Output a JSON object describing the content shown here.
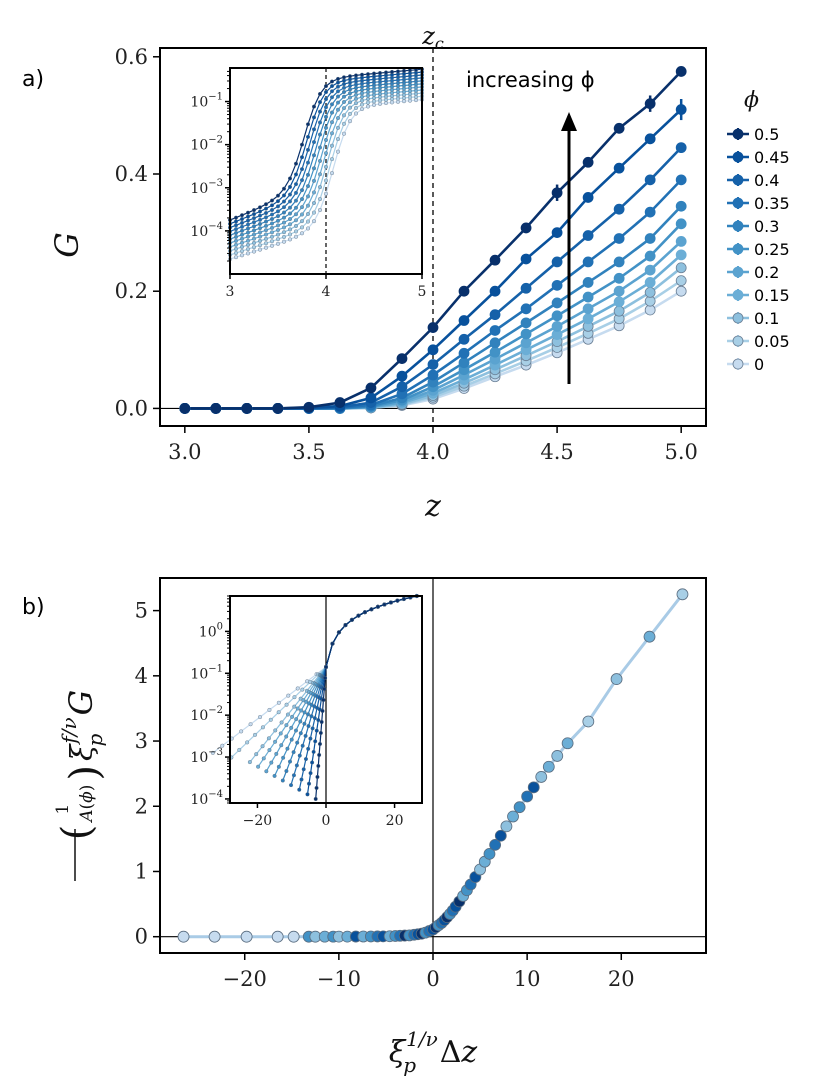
{
  "chart_data": [
    {
      "panel": "a)",
      "type": "line",
      "xlabel": "z",
      "ylabel": "G",
      "xlim": [
        2.9,
        5.1
      ],
      "ylim": [
        -0.03,
        0.615
      ],
      "xticks": [
        "3.0",
        "3.5",
        "4.0",
        "4.5",
        "5.0"
      ],
      "yticks": [
        "0.0",
        "0.2",
        "0.4",
        "0.6"
      ],
      "vline_x": 4.0,
      "vline_label": "z_c",
      "hline_y": 0,
      "annotation": "increasing ϕ",
      "legend": {
        "title": "ϕ",
        "position": "right",
        "entries": [
          "0.5",
          "0.45",
          "0.4",
          "0.35",
          "0.3",
          "0.25",
          "0.2",
          "0.15",
          "0.1",
          "0.05",
          "0"
        ]
      },
      "colors": [
        "#08306b",
        "#08519c",
        "#1561a9",
        "#2171b5",
        "#3182bd",
        "#4292c6",
        "#5ba3d0",
        "#6baed6",
        "#8dc0de",
        "#a8cfe6",
        "#c6dbef"
      ],
      "x": [
        3.0,
        3.125,
        3.25,
        3.375,
        3.5,
        3.625,
        3.75,
        3.875,
        4.0,
        4.125,
        4.25,
        4.375,
        4.5,
        4.625,
        4.75,
        4.875,
        5.0
      ],
      "series": [
        {
          "name": "0.5",
          "values": [
            0,
            0,
            0,
            0,
            0.002,
            0.01,
            0.035,
            0.085,
            0.138,
            0.2,
            0.253,
            0.308,
            0.368,
            0.42,
            0.478,
            0.52,
            0.575
          ]
        },
        {
          "name": "0.45",
          "values": [
            0,
            0,
            0,
            0,
            0.001,
            0.004,
            0.018,
            0.055,
            0.1,
            0.15,
            0.2,
            0.255,
            0.3,
            0.36,
            0.41,
            0.46,
            0.51
          ]
        },
        {
          "name": "0.4",
          "values": [
            0,
            0,
            0,
            0,
            0,
            0.002,
            0.01,
            0.037,
            0.075,
            0.118,
            0.16,
            0.205,
            0.25,
            0.295,
            0.34,
            0.39,
            0.445
          ]
        },
        {
          "name": "0.35",
          "values": [
            0,
            0,
            0,
            0,
            0,
            0.001,
            0.006,
            0.025,
            0.057,
            0.094,
            0.133,
            0.17,
            0.21,
            0.25,
            0.29,
            0.335,
            0.39
          ]
        },
        {
          "name": "0.3",
          "values": [
            0,
            0,
            0,
            0,
            0,
            0,
            0.004,
            0.018,
            0.045,
            0.078,
            0.112,
            0.146,
            0.18,
            0.215,
            0.25,
            0.29,
            0.345
          ]
        },
        {
          "name": "0.25",
          "values": [
            0,
            0,
            0,
            0,
            0,
            0,
            0.003,
            0.014,
            0.037,
            0.066,
            0.096,
            0.127,
            0.158,
            0.19,
            0.222,
            0.26,
            0.315
          ]
        },
        {
          "name": "0.2",
          "values": [
            0,
            0,
            0,
            0,
            0,
            0,
            0.002,
            0.011,
            0.031,
            0.057,
            0.084,
            0.112,
            0.14,
            0.17,
            0.2,
            0.236,
            0.285
          ]
        },
        {
          "name": "0.15",
          "values": [
            0,
            0,
            0,
            0,
            0,
            0,
            0.002,
            0.009,
            0.026,
            0.049,
            0.074,
            0.1,
            0.126,
            0.153,
            0.182,
            0.215,
            0.262
          ]
        },
        {
          "name": "0.1",
          "values": [
            0,
            0,
            0,
            0,
            0,
            0,
            0.001,
            0.007,
            0.022,
            0.043,
            0.066,
            0.09,
            0.114,
            0.14,
            0.166,
            0.198,
            0.24
          ]
        },
        {
          "name": "0.05",
          "values": [
            0,
            0,
            0,
            0,
            0,
            0,
            0.001,
            0.006,
            0.019,
            0.038,
            0.059,
            0.081,
            0.104,
            0.128,
            0.153,
            0.183,
            0.218
          ]
        },
        {
          "name": "0",
          "values": [
            0,
            0,
            0,
            0,
            0,
            0,
            0.001,
            0.005,
            0.016,
            0.034,
            0.054,
            0.074,
            0.095,
            0.118,
            0.141,
            0.168,
            0.2
          ]
        }
      ],
      "inset": {
        "type": "line",
        "yscale": "log",
        "xlim": [
          3.0,
          5.0
        ],
        "ylim": [
          1e-05,
          0.6
        ],
        "xticks": [
          "3",
          "4",
          "5"
        ],
        "yticks": [
          "10^{-4}",
          "10^{-3}",
          "10^{-2}",
          "10^{-1}"
        ],
        "vline_x": 4.0
      }
    },
    {
      "panel": "b)",
      "type": "scatter",
      "xlabel": "ξ_p^{1/ν} Δz",
      "ylabel": "(1/A(ϕ)) ξ_p^{f/ν} G",
      "xlim": [
        -29,
        29
      ],
      "ylim": [
        -0.25,
        5.5
      ],
      "xticks": [
        "−20",
        "−10",
        "0",
        "10",
        "20"
      ],
      "yticks": [
        "0",
        "1",
        "2",
        "3",
        "4",
        "5"
      ],
      "vline_x": 0,
      "hline_y": 0,
      "collapse_curve": [
        [
          -26.5,
          0
        ],
        [
          -16,
          0
        ],
        [
          -9,
          0.001
        ],
        [
          -5,
          0.005
        ],
        [
          -2.5,
          0.02
        ],
        [
          -1,
          0.05
        ],
        [
          0,
          0.11
        ],
        [
          1,
          0.22
        ],
        [
          2,
          0.38
        ],
        [
          3,
          0.58
        ],
        [
          4,
          0.8
        ],
        [
          5,
          1.03
        ],
        [
          6,
          1.27
        ],
        [
          7,
          1.5
        ],
        [
          8,
          1.74
        ],
        [
          10,
          2.15
        ],
        [
          12,
          2.55
        ],
        [
          14,
          2.92
        ],
        [
          16.5,
          3.3
        ],
        [
          19.5,
          3.95
        ],
        [
          23,
          4.6
        ],
        [
          26.5,
          5.25
        ]
      ],
      "points_x": [
        -26.5,
        -23.2,
        -19.8,
        -16.5,
        -14.8,
        -13.2,
        -12.5,
        -11.5,
        -10.6,
        -10,
        -9.1,
        -8.2,
        -7.4,
        -6.6,
        -5.9,
        -5.3,
        -4.6,
        -4,
        -3.5,
        -3,
        -2.5,
        -2,
        -1.6,
        -1.2,
        -0.8,
        -0.4,
        0,
        0.3,
        0.6,
        0.9,
        1.2,
        1.5,
        1.8,
        2.1,
        2.4,
        2.8,
        3.2,
        3.6,
        4,
        4.5,
        5,
        5.5,
        6,
        6.6,
        7.2,
        7.8,
        8.5,
        9.2,
        10,
        10.7,
        11.5,
        12.3,
        13.2,
        14.3,
        16.5,
        19.5,
        23,
        26.5
      ],
      "inset": {
        "type": "line",
        "yscale": "log",
        "xlim": [
          -28,
          28
        ],
        "ylim": [
          8e-05,
          7
        ],
        "xticks": [
          "−20",
          "0",
          "20"
        ],
        "yticks": [
          "10^{-4}",
          "10^{-3}",
          "10^{-2}",
          "10^{-1}",
          "10^{0}"
        ],
        "vline_x": 0
      }
    }
  ]
}
